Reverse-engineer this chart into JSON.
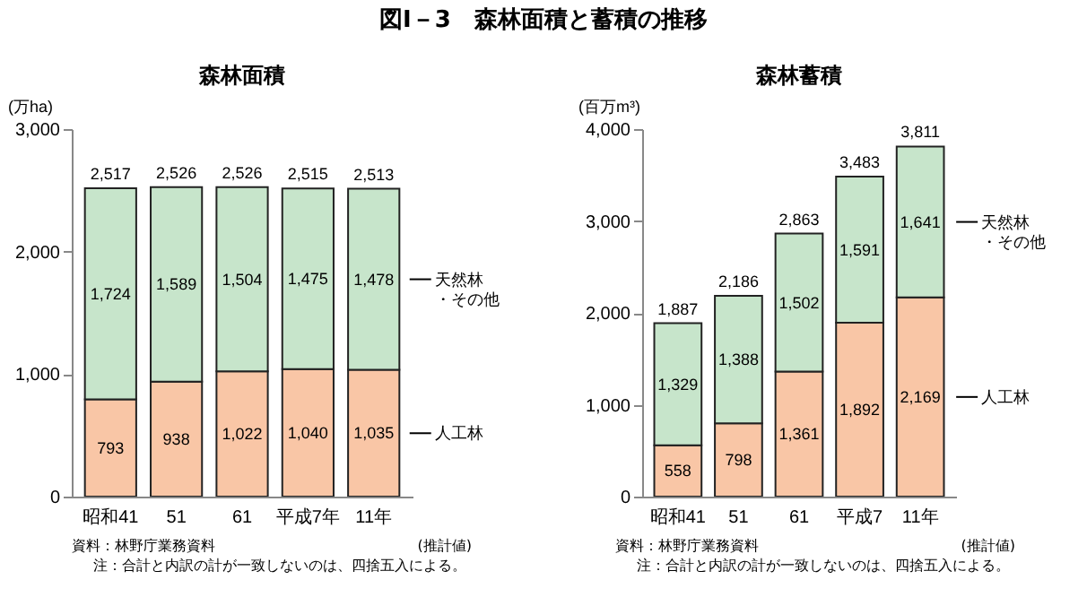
{
  "chart_data": [
    {
      "type": "bar",
      "title": "森林面積",
      "ylabel": "(万ha)",
      "categories": [
        "昭和41",
        "51",
        "61",
        "平成7年",
        "11年"
      ],
      "stacked": true,
      "series": [
        {
          "name": "人工林",
          "color": "#f9c6a6",
          "values": [
            793,
            938,
            1022,
            1040,
            1035
          ],
          "value_labels": [
            "793",
            "938",
            "1,022",
            "1,040",
            "1,035"
          ]
        },
        {
          "name": "天然林・その他",
          "color": "#c7e5cb",
          "values": [
            1724,
            1589,
            1504,
            1475,
            1478
          ],
          "value_labels": [
            "1,724",
            "1,589",
            "1,504",
            "1,475",
            "1,478"
          ]
        }
      ],
      "totals": [
        "2,517",
        "2,526",
        "2,526",
        "2,515",
        "2,513"
      ],
      "ylim": [
        0,
        3000
      ],
      "yticks": [
        0,
        {
          "value": 1000,
          "label": "1,000"
        },
        {
          "value": 2000,
          "label": "2,000"
        },
        {
          "value": 3000,
          "label": "3,000"
        }
      ],
      "grid": false,
      "annotations": [
        "図Ⅰ－3　森林面積と蓄積の推移",
        "(推計値)",
        "資料：林野庁業務資料",
        "注：合計と内訳の計が一致しないのは、四捨五入による。"
      ]
    },
    {
      "type": "bar",
      "title": "森林蓄積",
      "ylabel": "(百万m³)",
      "categories": [
        "昭和41",
        "51",
        "61",
        "平成7",
        "11年"
      ],
      "stacked": true,
      "series": [
        {
          "name": "人工林",
          "color": "#f9c6a6",
          "values": [
            558,
            798,
            1361,
            1892,
            2169
          ],
          "value_labels": [
            "558",
            "798",
            "1,361",
            "1,892",
            "2,169"
          ]
        },
        {
          "name": "天然林・その他",
          "color": "#c7e5cb",
          "values": [
            1329,
            1388,
            1502,
            1591,
            1641
          ],
          "value_labels": [
            "1,329",
            "1,388",
            "1,502",
            "1,591",
            "1,641"
          ]
        }
      ],
      "totals": [
        "1,887",
        "2,186",
        "2,863",
        "3,483",
        "3,811"
      ],
      "ylim": [
        0,
        4000
      ],
      "yticks": [
        0,
        {
          "value": 1000,
          "label": "1,000"
        },
        {
          "value": 2000,
          "label": "2,000"
        },
        {
          "value": 3000,
          "label": "3,000"
        },
        {
          "value": 4000,
          "label": "4,000"
        }
      ],
      "grid": false,
      "annotations": [
        "(推計値)",
        "資料：林野庁業務資料",
        "注：合計と内訳の計が一致しないのは、四捨五入による。"
      ]
    }
  ]
}
